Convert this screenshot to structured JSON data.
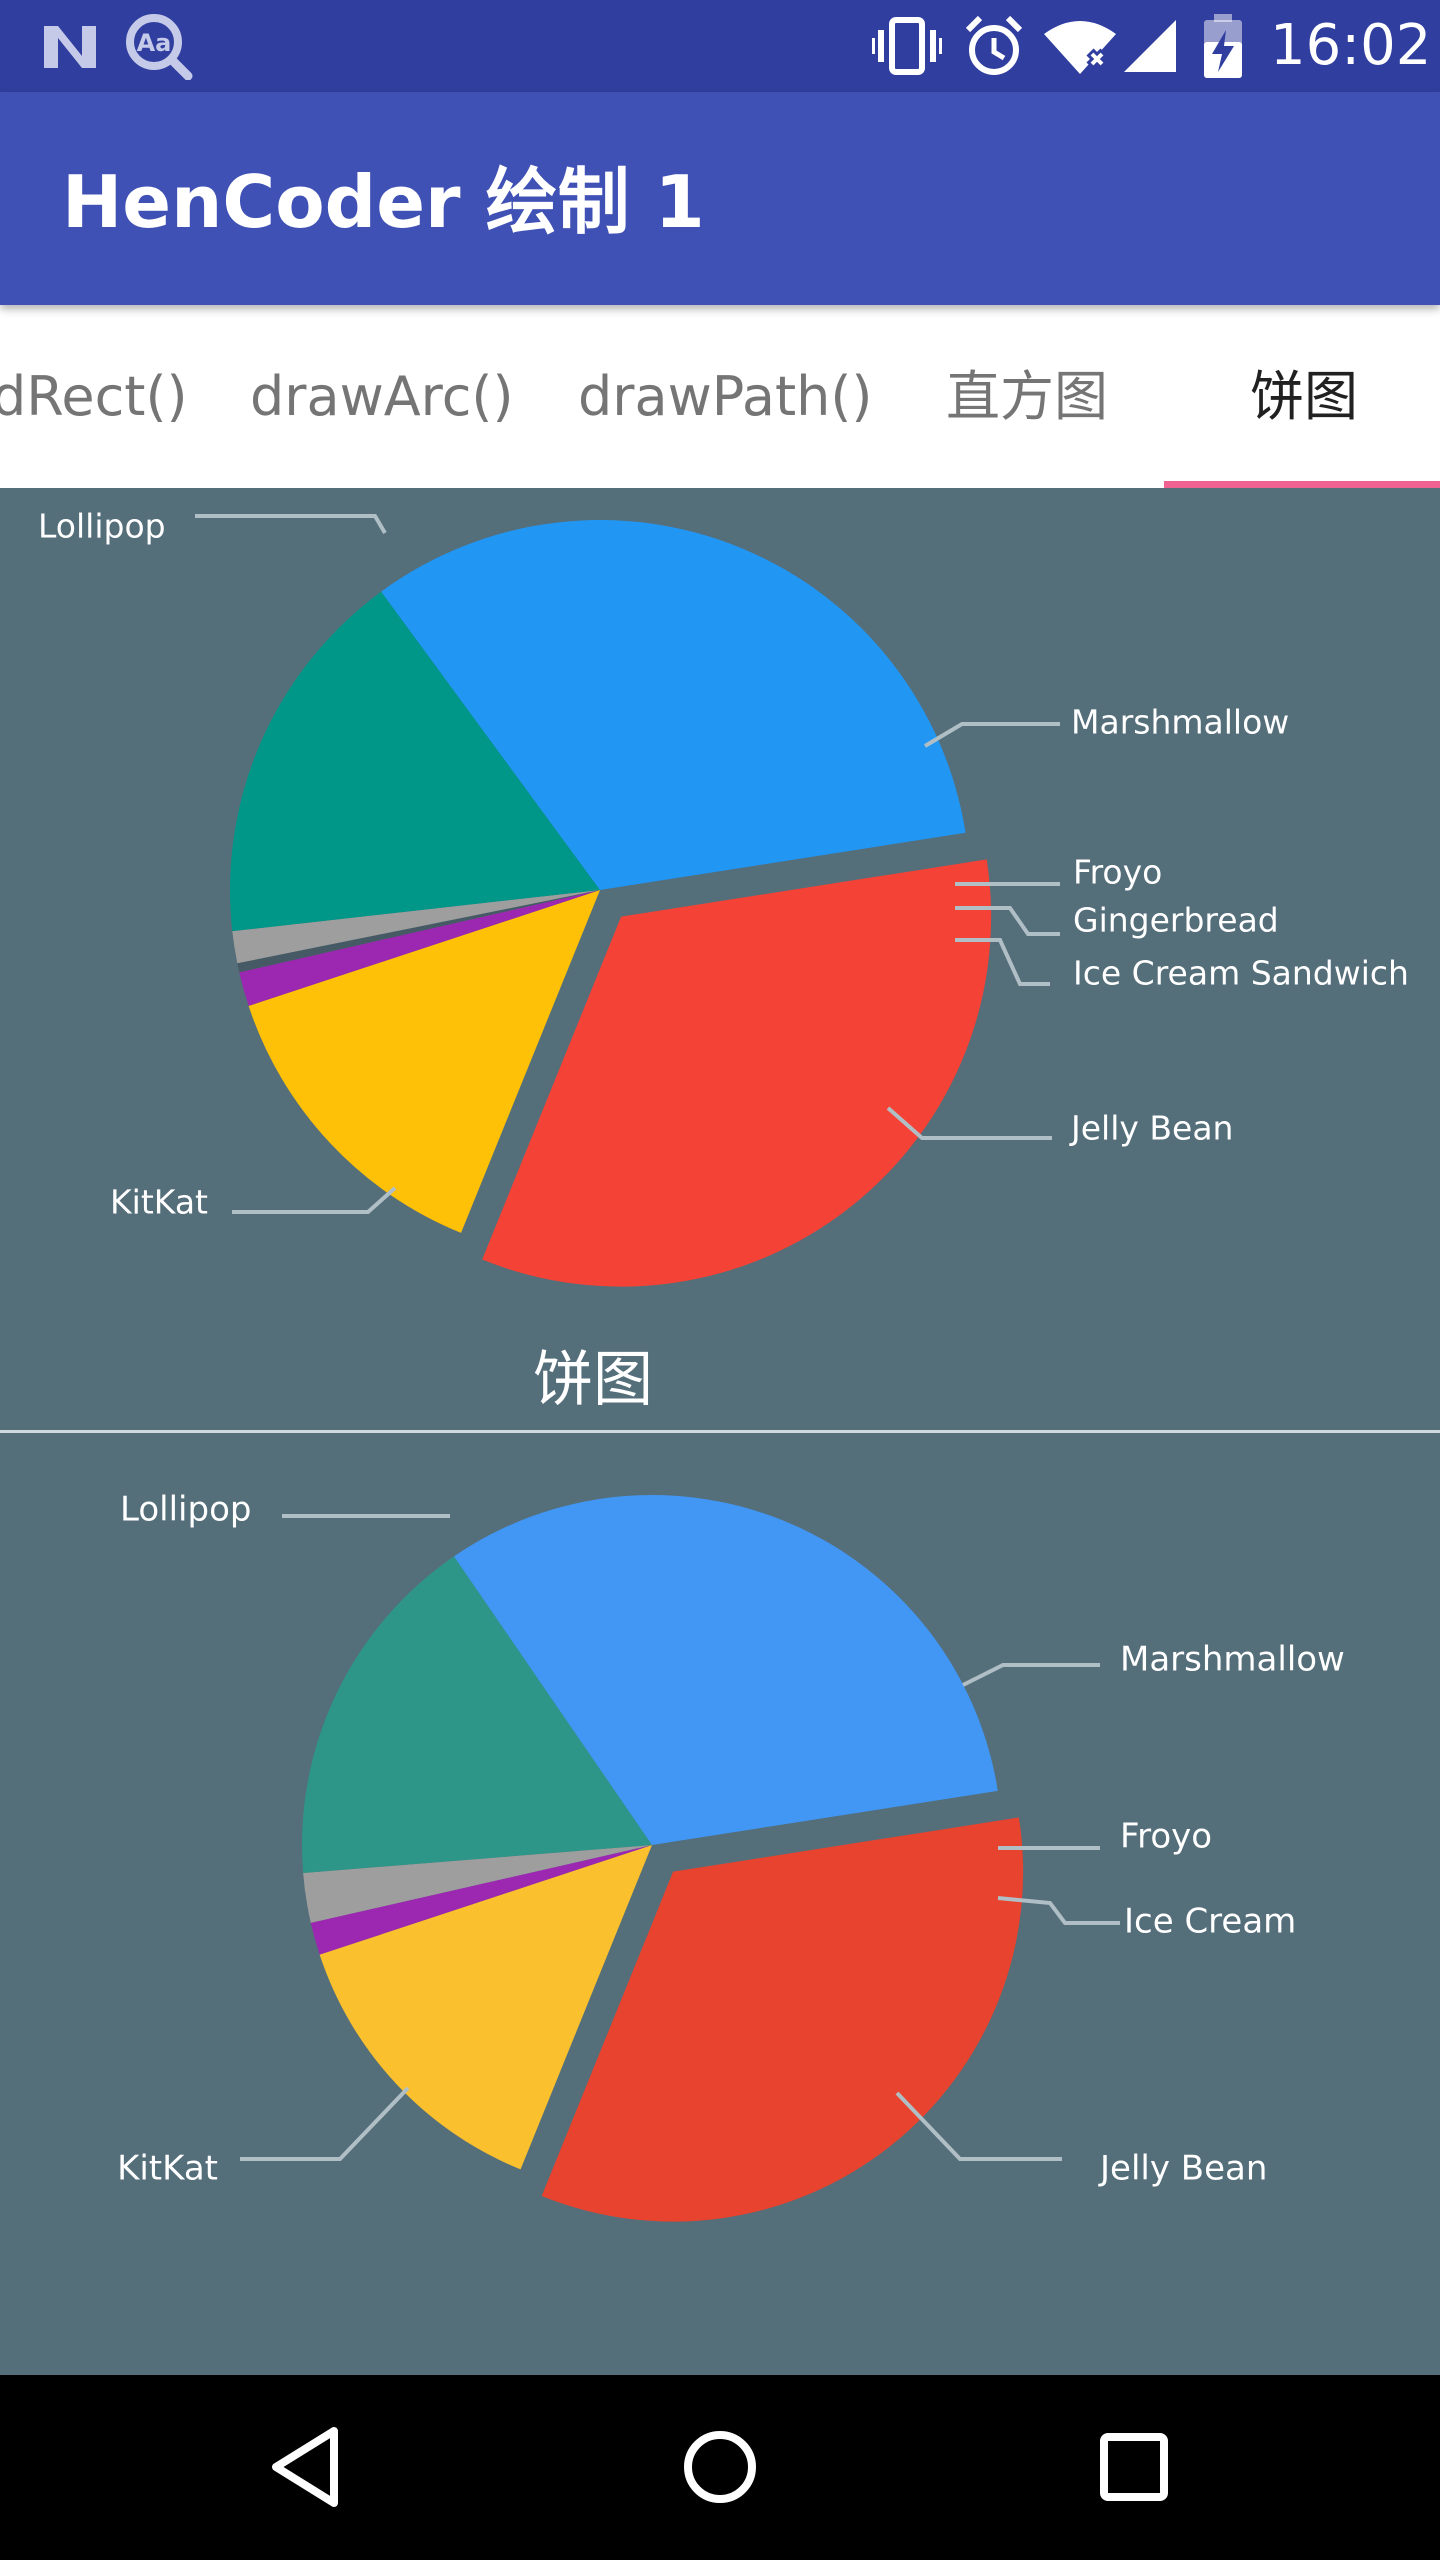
{
  "status_bar": {
    "time": "16:02",
    "icons": [
      "notification-n-icon",
      "font-accessibility-icon",
      "vibrate-icon",
      "alarm-icon",
      "wifi-icon",
      "cell-signal-icon",
      "battery-charging-icon"
    ]
  },
  "app_bar": {
    "title": "HenCoder 绘制 1"
  },
  "tabs": [
    {
      "label": "dRect()",
      "active": false
    },
    {
      "label": "drawArc()",
      "active": false
    },
    {
      "label": "drawPath()",
      "active": false
    },
    {
      "label": "直方图",
      "active": false
    },
    {
      "label": "饼图",
      "active": true
    }
  ],
  "colors": {
    "status_bar": "#303f9f",
    "app_bar": "#3f51b5",
    "tab_indicator": "#f06292",
    "background": "#546e7a"
  },
  "chart_data": [
    {
      "type": "pie",
      "title": "饼图",
      "slices": [
        {
          "label": "Lollipop",
          "value": 33.6,
          "color": "#f44336",
          "exploded": true
        },
        {
          "label": "Marshmallow",
          "value": 13.8,
          "color": "#ffc107",
          "exploded": false
        },
        {
          "label": "Froyo",
          "value": 1.5,
          "color": "#9c27b0",
          "exploded": false
        },
        {
          "label": "Gingerbread",
          "value": 0.4,
          "color": "#455a64",
          "exploded": false
        },
        {
          "label": "Ice Cream Sandwich",
          "value": 1.4,
          "color": "#9e9e9e",
          "exploded": false
        },
        {
          "label": "Jelly Bean",
          "value": 16.7,
          "color": "#009688",
          "exploded": false
        },
        {
          "label": "KitKat",
          "value": 32.6,
          "color": "#2196f3",
          "exploded": false
        }
      ]
    },
    {
      "type": "pie",
      "title": "",
      "slices": [
        {
          "label": "Lollipop",
          "value": 33.6,
          "color": "#e8432e",
          "exploded": true
        },
        {
          "label": "Marshmallow",
          "value": 13.8,
          "color": "#fbc02d",
          "exploded": false
        },
        {
          "label": "Froyo",
          "value": 1.5,
          "color": "#9c27b0",
          "exploded": false
        },
        {
          "label": "Ice Cream",
          "value": 2.3,
          "color": "#9e9e9e",
          "exploded": false
        },
        {
          "label": "Jelly Bean",
          "value": 16.7,
          "color": "#2e9688",
          "exploded": false
        },
        {
          "label": "KitKat",
          "value": 32.1,
          "color": "#4296f4",
          "exploded": false
        }
      ]
    }
  ],
  "nav_bar": {
    "icons": [
      "back-icon",
      "home-icon",
      "recents-icon"
    ]
  }
}
